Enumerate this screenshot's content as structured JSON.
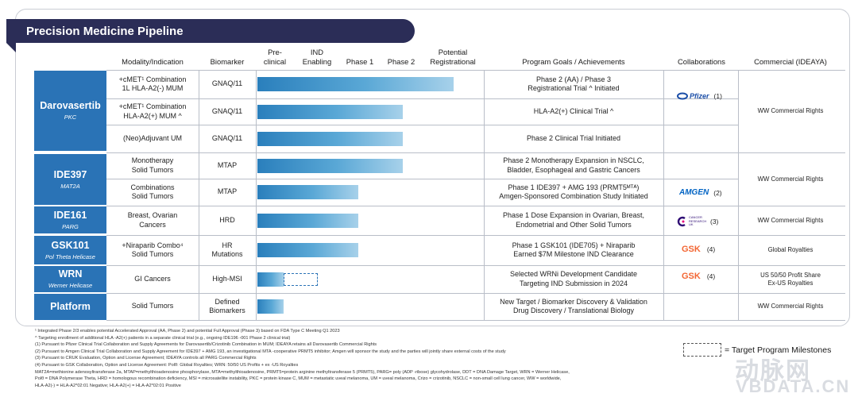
{
  "title": "Precision Medicine Pipeline",
  "headers": {
    "modality": "Modality/Indication",
    "biomarker": "Biomarker",
    "preclinical": "Pre-\nclinical",
    "ind": "IND\nEnabling",
    "phase1": "Phase 1",
    "phase2": "Phase 2",
    "registrational": "Potential\nRegistrational",
    "goals": "Program Goals / Achievements",
    "collaborations": "Collaborations",
    "commercial": "Commercial (IDEAYA)"
  },
  "programs": [
    {
      "name": "Darovasertib",
      "target": "PKC"
    },
    {
      "name": "IDE397",
      "target": "MAT2A"
    },
    {
      "name": "IDE161",
      "target": "PARG"
    },
    {
      "name": "GSK101",
      "target": "Pol Theta Helicase"
    },
    {
      "name": "WRN",
      "target": "Werner Helicase"
    },
    {
      "name": "Platform",
      "target": ""
    }
  ],
  "rows": [
    {
      "modality": "+cMET¹ Combination\n1L HLA-A2(-) MUM",
      "biomarker": "GNAQ/11",
      "progress_phase": 5.0,
      "goal": "Phase 2 (AA) / Phase 3\nRegistrational Trial  ^ Initiated"
    },
    {
      "modality": "+cMET¹ Combination\nHLA-A2(+) MUM ^",
      "biomarker": "GNAQ/11",
      "progress_phase": 4.0,
      "goal": "HLA-A2(+) Clinical Trial  ^"
    },
    {
      "modality": "(Neo)Adjuvant UM",
      "biomarker": "GNAQ/11",
      "progress_phase": 4.0,
      "goal": "Phase 2 Clinical Trial Initiated"
    },
    {
      "modality": "Monotherapy\nSolid Tumors",
      "biomarker": "MTAP",
      "progress_phase": 4.0,
      "goal": "Phase 2 Monotherapy Expansion in NSCLC,\nBladder, Esophageal and Gastric Cancers"
    },
    {
      "modality": "Combinations\nSolid Tumors",
      "biomarker": "MTAP",
      "progress_phase": 3.0,
      "goal": "Phase 1 IDE397 + AMG 193 (PRMT5ᴹᵀᴬ)\nAmgen-Sponsored Combination Study Initiated"
    },
    {
      "modality": "Breast, Ovarian\nCancers",
      "biomarker": "HRD",
      "progress_phase": 3.0,
      "goal": "Phase 1 Dose Expansion in Ovarian, Breast,\nEndometrial and Other Solid Tumors"
    },
    {
      "modality": "+Niraparib Combo⁴\nSolid Tumors",
      "biomarker": "HR\nMutations",
      "progress_phase": 3.0,
      "goal": "Phase 1 GSK101 (IDE705) + Niraparib\nEarned $7M Milestone IND Clearance"
    },
    {
      "modality": "GI Cancers",
      "biomarker": "High-MSI",
      "progress_phase": 1.0,
      "target_phase": 2.0,
      "goal": "Selected WRNi Development Candidate\nTargeting IND Submission in 2024"
    },
    {
      "modality": "Solid Tumors",
      "biomarker": "Defined\nBiomarkers",
      "progress_phase": 1.0,
      "goal": "New Target / Biomarker Discovery & Validation\nDrug Discovery / Translational Biology"
    }
  ],
  "collaborations": [
    {
      "partner": "Pfizer",
      "note": "(1)",
      "color": "#1c4fa8"
    },
    {
      "partner": "AMGEN",
      "note": "(2)",
      "color": "#0063c3"
    },
    {
      "partner": "CANCER RESEARCH UK",
      "note": "(3)",
      "color": "#2e0b74"
    },
    {
      "partner": "GSK",
      "note": "(4)",
      "color": "#f36633"
    },
    {
      "partner": "GSK",
      "note": "(4)",
      "color": "#f36633"
    }
  ],
  "commercial": [
    "WW Commercial Rights",
    "WW Commercial Rights",
    "WW Commercial Rights",
    "Global Royalties",
    "US 50/50 Profit Share\nEx-US Royalties",
    "WW Commercial Rights"
  ],
  "legend": "= Target Program Milestones",
  "footnotes": [
    "¹ Integrated Phase 2/3 enables potential Accelerated Approval (AA, Phase 2) and potential Full Approval (Phase 3) based on FDA   Type C Meeting Q1 2023",
    "^ Targeting enrollment of additional HLA -A2(+) patients in a separate clinical trial (e.g., ongoing IDE196 -001 Phase 2 clinical trial)",
    "(1) Pursuant to Pfizer Clinical Trial Collaboration and Supply Agreements for  Darovasertib/Crizotinib Combination in MUM; IDEAYA retains all  Darovasertib Commercial Rights",
    "(2) Pursuant to Amgen Clinical Trial Collaboration and Supply Agreement for IDE397 + AMG 193, an investigational MTA  -cooperative PRMT5 inhibitor; Amgen will sponsor the study and the parties will jointly share external costs of the study",
    "(3) Pursuant to CRUK Evaluation, Option and License Agreement; IDEAYA controls all PARG Commercial Rights",
    "(4) Pursuant to GSK Collaboration, Option and License Agreement:  Polθ: Global Royalties; WRN: 50/50 US Profits + ex -US Royalties",
    "MAT2A=methionine adenosyltransferase 2a, MTAP=methylthioadenosine phosphorylase, MTA=methylthioadenosine, PRMT5=protein arginine methyltransferase 5 (PRMT5), PARG= poly (ADP -ribose) glycohydrolase, DDT = DNA Damage Target, WRN = Werner Helicase,",
    "Polθ = DNA Polymerase Theta, HRD = homologous recombination deficiency, MSI = microsatellite instability, PKC = protein kinase C,    MUM = metastatic uveal melanoma, UM = uveal melanoma,  Crizo = crizotinib, NSCLC = non-small cell lung cancer, WW = worldwide,",
    "HLA-A2(-) = HLA-A2*02:01 Negative; HLA-A2(+) = HLA-A2*02:01 Positive"
  ],
  "watermark": {
    "cn": "动脉网",
    "en": "VBDATA.CN"
  }
}
